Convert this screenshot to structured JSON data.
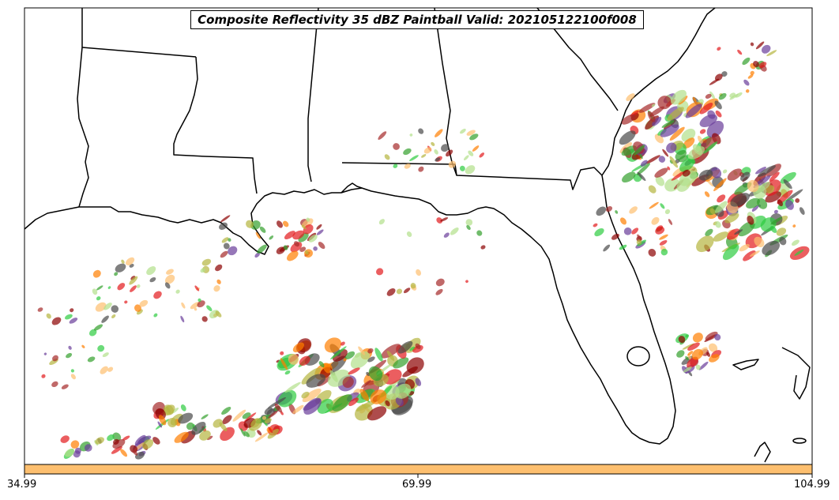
{
  "title": "Composite Reflectivity 35 dBZ Paintball Valid: 202105122100f008",
  "colorbar": {
    "tick_labels": [
      "34.99",
      "69.99",
      "104.99"
    ],
    "fill_color": "#fdbf6f"
  },
  "colors": {
    "coastline": "#000000",
    "ocean": "#ffffff",
    "paintball": [
      "#e31a1c",
      "#ff7f00",
      "#fdbf6f",
      "#b2df8a",
      "#33a02c",
      "#6a3d9a",
      "#8b0000",
      "#b5b53f",
      "#4a4a4a",
      "#a52a2a",
      "#2ecc40"
    ]
  }
}
